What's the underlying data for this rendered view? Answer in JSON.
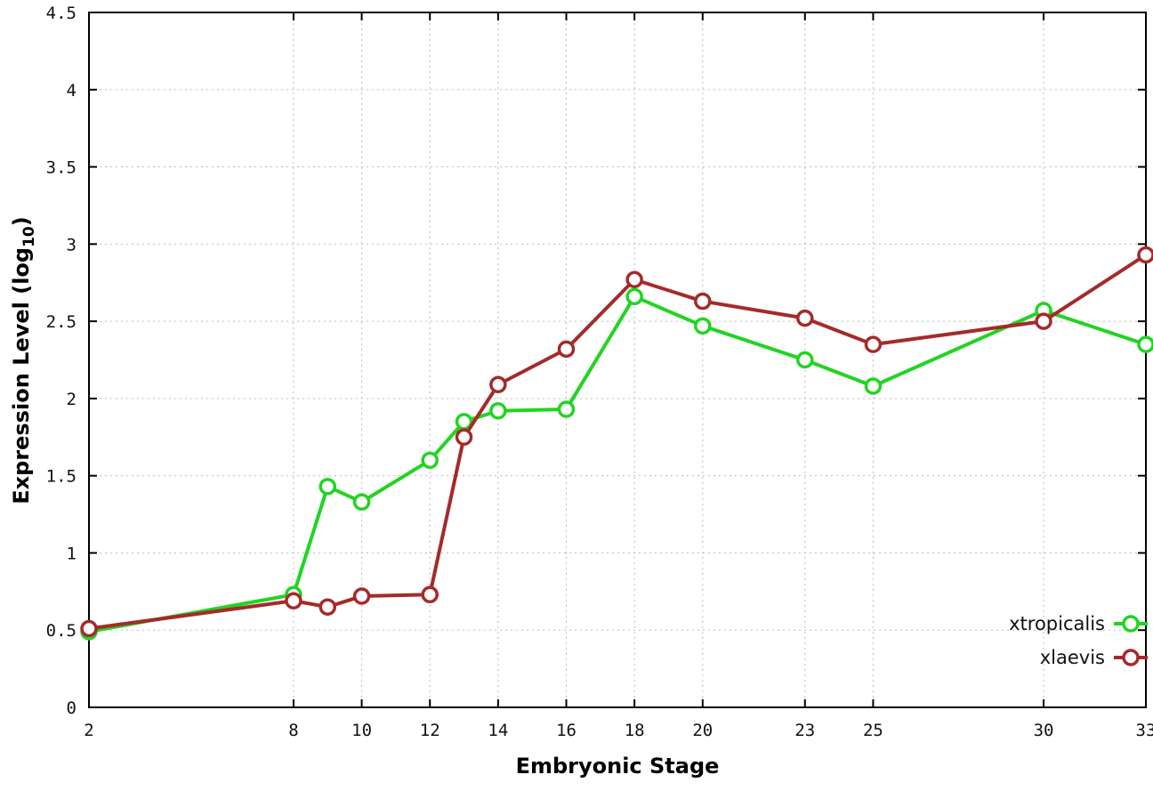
{
  "chart_data": {
    "type": "line",
    "title": "",
    "xlabel": "Embryonic Stage",
    "ylabel": "Expression Level (log10)",
    "ylabel_parts": {
      "main": "Expression Level (log",
      "sub": "10",
      "close": ")"
    },
    "xlim": [
      2,
      33
    ],
    "ylim": [
      0,
      4.5
    ],
    "x_ticks": [
      2,
      8,
      10,
      12,
      14,
      16,
      18,
      20,
      23,
      25,
      30,
      33
    ],
    "y_ticks": [
      0,
      0.5,
      1,
      1.5,
      2,
      2.5,
      3,
      3.5,
      4,
      4.5
    ],
    "grid": true,
    "marker": "open-circle",
    "legend_position": "inside-bottom-right",
    "x": [
      2,
      8,
      9,
      10,
      12,
      13,
      14,
      16,
      18,
      20,
      23,
      25,
      30,
      33
    ],
    "series": [
      {
        "name": "xtropicalis",
        "color": "#22d422",
        "values": [
          0.49,
          0.73,
          1.43,
          1.33,
          1.6,
          1.85,
          1.92,
          1.93,
          2.66,
          2.47,
          2.25,
          2.08,
          2.57,
          2.35
        ]
      },
      {
        "name": "xlaevis",
        "color": "#a52a2a",
        "values": [
          0.51,
          0.69,
          0.65,
          0.72,
          0.73,
          1.75,
          2.09,
          2.32,
          2.77,
          2.63,
          2.52,
          2.35,
          2.5,
          2.93
        ]
      }
    ]
  }
}
